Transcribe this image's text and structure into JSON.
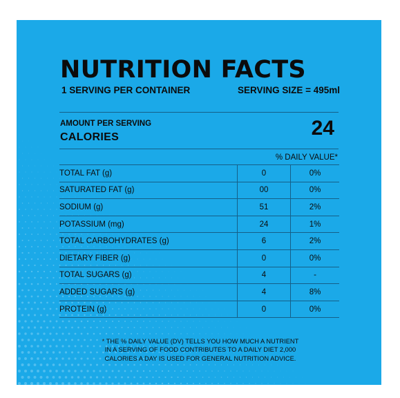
{
  "label": {
    "title": "NUTRITION FACTS",
    "servings_per_container": "1 SERVING PER CONTAINER",
    "serving_size": "SERVING SIZE = 495ml",
    "amount_per_serving": "AMOUNT PER SERVING",
    "calories_label": "CALORIES",
    "calories_value": "24",
    "daily_value_header": "% DAILY VALUE*",
    "rows": [
      {
        "name": "TOTAL FAT (g)",
        "amount": "0",
        "dv": "0%"
      },
      {
        "name": "SATURATED FAT (g)",
        "amount": "00",
        "dv": "0%"
      },
      {
        "name": "SODIUM (g)",
        "amount": "51",
        "dv": "2%"
      },
      {
        "name": "POTASSIUM (mg)",
        "amount": "24",
        "dv": "1%"
      },
      {
        "name": "TOTAL CARBOHYDRATES (g)",
        "amount": "6",
        "dv": "2%"
      },
      {
        "name": "DIETARY FIBER (g)",
        "amount": "0",
        "dv": "0%"
      },
      {
        "name": "TOTAL SUGARS (g)",
        "amount": "4",
        "dv": "-"
      },
      {
        "name": "ADDED SUGARS (g)",
        "amount": "4",
        "dv": "8%"
      },
      {
        "name": "PROTEIN (g)",
        "amount": "0",
        "dv": "0%"
      }
    ],
    "footnote": "* THE % DAILY VALUE (DV) TELLS YOU HOW MUCH A NUTRIENT\nIN A SERVING OF FOOD CONTRIBUTES TO A DAILY DIET 2,000\nCALORIES A DAY IS USED FOR GENERAL NUTRITION ADVICE."
  },
  "colors": {
    "page_background": "#ffffff",
    "panel_background": "#1ba9e8",
    "text": "#0b0b0b",
    "rule_lines": "#155f88"
  }
}
